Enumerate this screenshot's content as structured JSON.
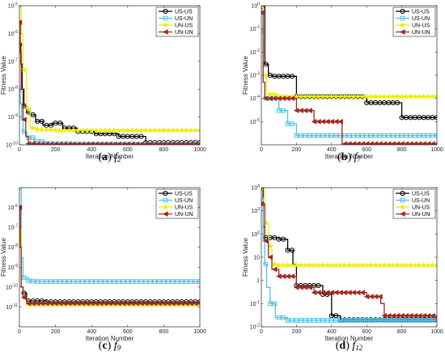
{
  "chart_data": [
    {
      "type": "line",
      "caption_label": "(a)",
      "caption_func": "f",
      "caption_sub": "2",
      "xlabel": "Iteration Number",
      "ylabel": "Fitness Value",
      "xlim": [
        0,
        1000
      ],
      "ylim": [
        1e-10,
        1e-05
      ],
      "yscale": "log",
      "xticks": [
        0,
        200,
        400,
        600,
        800,
        1000
      ],
      "yticks": [
        {
          "value": 1e-10,
          "base": "10",
          "exp": "-10"
        },
        {
          "value": 1e-09,
          "base": "10",
          "exp": "-9"
        },
        {
          "value": 1e-08,
          "base": "10",
          "exp": "-8"
        },
        {
          "value": 1e-07,
          "base": "10",
          "exp": "-7"
        },
        {
          "value": 1e-06,
          "base": "10",
          "exp": "-6"
        },
        {
          "value": 1e-05,
          "base": "10",
          "exp": "-5"
        }
      ],
      "legend": "top-right",
      "series": [
        {
          "name": "US-US",
          "color": "#000000",
          "marker": "circle",
          "x": [
            0,
            3,
            8,
            15,
            25,
            40,
            60,
            90,
            130,
            180,
            240,
            320,
            420,
            550,
            700,
            1000
          ],
          "y": [
            4e-07,
            4e-07,
            8e-08,
            1e-08,
            2.5e-09,
            1.5e-09,
            1.2e-09,
            7e-10,
            5e-10,
            6e-10,
            4e-10,
            3e-10,
            2.5e-10,
            2e-10,
            1.2e-10,
            1.2e-10
          ]
        },
        {
          "name": "US-UN",
          "color": "#4fc3e8",
          "marker": "square",
          "x": [
            0,
            5,
            12,
            20,
            40,
            80,
            150,
            300,
            1000
          ],
          "y": [
            1e-08,
            3e-09,
            8e-10,
            3e-10,
            1.8e-10,
            1.3e-10,
            1.1e-10,
            1.05e-10,
            1.05e-10
          ]
        },
        {
          "name": "UN-US",
          "color": "#eeee00",
          "marker": "star",
          "x": [
            0,
            5,
            10,
            20,
            40,
            60,
            100,
            200,
            1000
          ],
          "y": [
            1e-05,
            1e-05,
            1e-06,
            5e-08,
            2e-09,
            4e-10,
            3.5e-10,
            3.3e-10,
            3.3e-10
          ]
        },
        {
          "name": "UN-UN",
          "color": "#a0281e",
          "marker": "triangle-left",
          "x": [
            0,
            5,
            10,
            20,
            35,
            50,
            100,
            1000
          ],
          "y": [
            2.5e-06,
            2e-07,
            1e-08,
            8e-10,
            2e-10,
            1.1e-10,
            1.05e-10,
            1.05e-10
          ]
        }
      ]
    },
    {
      "type": "line",
      "caption_label": "(b)",
      "caption_func": "f",
      "caption_sub": "7",
      "xlabel": "Iteration Number",
      "ylabel": "Fitness Value",
      "xlim": [
        0,
        1000
      ],
      "ylim": [
        1e-06,
        1
      ],
      "yscale": "log",
      "xticks": [
        0,
        200,
        400,
        600,
        800,
        1000
      ],
      "yticks": [
        {
          "value": 1e-05,
          "base": "10",
          "exp": "-5"
        },
        {
          "value": 0.0001,
          "base": "10",
          "exp": "-4"
        },
        {
          "value": 0.001,
          "base": "10",
          "exp": "-3"
        },
        {
          "value": 0.01,
          "base": "10",
          "exp": "-2"
        },
        {
          "value": 0.1,
          "base": "10",
          "exp": "-1"
        },
        {
          "value": 1,
          "base": "10",
          "exp": "0"
        }
      ],
      "legend": "top-right",
      "series": [
        {
          "name": "US-US",
          "color": "#000000",
          "marker": "circle",
          "x": [
            0,
            10,
            20,
            40,
            60,
            150,
            200,
            600,
            800,
            1000
          ],
          "y": [
            0.9,
            0.9,
            0.003,
            0.001,
            0.0009,
            0.0009,
            0.00012,
            6.5e-05,
            1.5e-05,
            1.5e-05
          ]
        },
        {
          "name": "US-UN",
          "color": "#4fc3e8",
          "marker": "square",
          "x": [
            0,
            10,
            20,
            50,
            100,
            150,
            200,
            1000
          ],
          "y": [
            0.08,
            0.0005,
            0.0001,
            0.0001,
            3e-05,
            8e-06,
            2.5e-06,
            2.5e-06
          ]
        },
        {
          "name": "UN-US",
          "color": "#eeee00",
          "marker": "star",
          "x": [
            0,
            10,
            30,
            100,
            1000
          ],
          "y": [
            1,
            0.001,
            0.00015,
            0.00012,
            0.00012
          ]
        },
        {
          "name": "UN-UN",
          "color": "#a0281e",
          "marker": "triangle-left",
          "x": [
            0,
            10,
            20,
            100,
            200,
            300,
            420,
            460,
            1000
          ],
          "y": [
            0.5,
            0.0005,
            0.0001,
            0.0001,
            3e-05,
            1e-05,
            1e-05,
            1.1e-06,
            1.1e-06
          ]
        }
      ]
    },
    {
      "type": "line",
      "caption_label": "(c)",
      "caption_func": "f",
      "caption_sub": "9",
      "xlabel": "Iteration Number",
      "ylabel": "Fitness Value",
      "xlim": [
        0,
        1000
      ],
      "ylim": [
        1e-12,
        1e-05
      ],
      "yscale": "log",
      "xticks": [
        0,
        200,
        400,
        600,
        800,
        1000
      ],
      "yticks": [
        {
          "value": 1e-11,
          "base": "10",
          "exp": "-11"
        },
        {
          "value": 1e-10,
          "base": "10",
          "exp": "-10"
        },
        {
          "value": 1e-09,
          "base": "10",
          "exp": "-9"
        },
        {
          "value": 1e-08,
          "base": "10",
          "exp": "-8"
        },
        {
          "value": 1e-07,
          "base": "10",
          "exp": "-7"
        },
        {
          "value": 1e-06,
          "base": "10",
          "exp": "-6"
        }
      ],
      "legend": "top-right",
      "series": [
        {
          "name": "US-US",
          "color": "#000000",
          "marker": "circle",
          "x": [
            0,
            5,
            10,
            20,
            40,
            80,
            150,
            1000
          ],
          "y": [
            1e-06,
            1e-07,
            1e-10,
            5e-11,
            2e-11,
            2e-11,
            1.8e-11,
            1.8e-11
          ]
        },
        {
          "name": "US-UN",
          "color": "#4fc3e8",
          "marker": "square",
          "x": [
            0,
            5,
            10,
            20,
            50,
            100,
            1000
          ],
          "y": [
            1e-05,
            1e-05,
            3e-09,
            3e-10,
            2e-10,
            1.9e-10,
            1.9e-10
          ]
        },
        {
          "name": "UN-US",
          "color": "#eeee00",
          "marker": "star",
          "x": [
            0,
            5,
            10,
            20,
            40,
            1000
          ],
          "y": [
            1e-06,
            1e-07,
            1e-10,
            3e-11,
            1.3e-11,
            1.3e-11
          ]
        },
        {
          "name": "UN-UN",
          "color": "#a0281e",
          "marker": "triangle-left",
          "x": [
            0,
            5,
            10,
            20,
            40,
            1000
          ],
          "y": [
            1e-06,
            1e-08,
            1e-10,
            3e-11,
            1.5e-11,
            1.5e-11
          ]
        }
      ]
    },
    {
      "type": "line",
      "caption_label": "(d)",
      "caption_func": "f",
      "caption_sub": "12",
      "xlabel": "Iteration Number",
      "ylabel": "Fitness Value",
      "xlim": [
        0,
        1000
      ],
      "ylim": [
        0.01,
        10000
      ],
      "yscale": "log",
      "xticks": [
        0,
        200,
        400,
        600,
        800,
        1000
      ],
      "yticks": [
        {
          "value": 0.01,
          "base": "10",
          "exp": "-2"
        },
        {
          "value": 0.1,
          "base": "10",
          "exp": "-1"
        },
        {
          "value": 1,
          "base": "1",
          "exp": ""
        },
        {
          "value": 10,
          "base": "10",
          "exp": ""
        },
        {
          "value": 100,
          "base": "10",
          "exp": "2"
        },
        {
          "value": 1000,
          "base": "10",
          "exp": "3"
        },
        {
          "value": 10000,
          "base": "10",
          "exp": "4"
        }
      ],
      "legend": "top-right",
      "series": [
        {
          "name": "US-US",
          "color": "#000000",
          "marker": "circle",
          "x": [
            0,
            10,
            20,
            40,
            100,
            150,
            180,
            200,
            300,
            350,
            400,
            450,
            1000
          ],
          "y": [
            10000,
            200,
            70,
            70,
            60,
            20,
            5,
            0.6,
            0.6,
            0.25,
            0.03,
            0.02,
            0.02
          ]
        },
        {
          "name": "US-UN",
          "color": "#4fc3e8",
          "marker": "square",
          "x": [
            0,
            10,
            20,
            30,
            50,
            80,
            150,
            1000
          ],
          "y": [
            3000,
            50,
            5,
            0.5,
            0.1,
            0.025,
            0.019,
            0.019
          ]
        },
        {
          "name": "UN-US",
          "color": "#eeee00",
          "marker": "star",
          "x": [
            0,
            20,
            40,
            60,
            80,
            1000
          ],
          "y": [
            10000,
            300,
            30,
            5,
            4.5,
            4.5
          ]
        },
        {
          "name": "UN-UN",
          "color": "#a0281e",
          "marker": "triangle-left",
          "x": [
            0,
            20,
            40,
            60,
            100,
            200,
            300,
            500,
            600,
            680,
            700,
            1000
          ],
          "y": [
            2000,
            50,
            10,
            3,
            1.5,
            0.5,
            0.3,
            0.3,
            0.2,
            0.1,
            0.03,
            0.025
          ]
        }
      ]
    }
  ]
}
